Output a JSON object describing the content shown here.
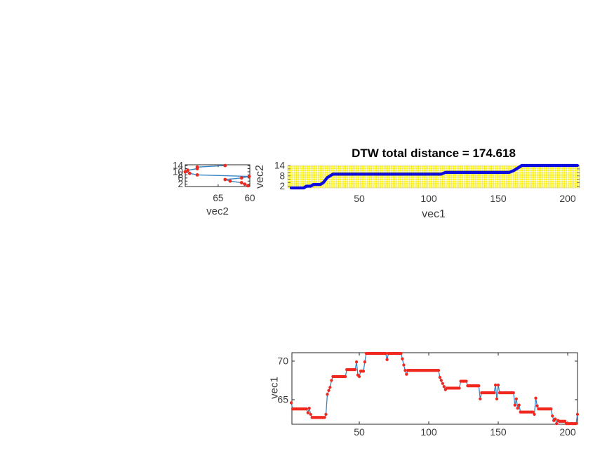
{
  "title": "DTW total distance = 174.618",
  "colors": {
    "marker_red": "#f0281e",
    "series_line_blue": "#3a85c4",
    "warp_path_blue": "#0c0cdf",
    "matrix_dot_yellow": "#f6ec00",
    "matrix_bg": "#fffee8",
    "axis_box": "#262626",
    "tick_text": "#3a3a3a",
    "title_text": "#000000",
    "grid_dash_white": "#ffffff"
  },
  "chart_data": [
    {
      "type": "line",
      "name": "vec2_profile_sideways",
      "xlabel": "vec2",
      "x_ticks": [
        65,
        60
      ],
      "x_reversed": true,
      "xlim": [
        70.2,
        60
      ],
      "y_tick_labels": [
        14,
        10,
        8,
        6,
        2
      ],
      "y_tick_marks": [
        2,
        4,
        6,
        8,
        10,
        12,
        14
      ],
      "ylim": [
        0.5,
        14.5
      ],
      "indices_axis": "y (sample index 1..14, bottom to top)",
      "values": [
        60.3,
        60.8,
        61.3,
        63.1,
        63.9,
        61.3,
        60.1,
        68.3,
        69.5,
        70.2,
        69.8,
        68.3,
        68.3,
        63.9
      ]
    },
    {
      "type": "line",
      "name": "dtw_warping_path",
      "title": "DTW total distance = 174.618",
      "xlabel": "vec1",
      "ylabel": "vec2",
      "x_ticks": [
        50,
        100,
        150,
        200
      ],
      "y_tick_labels": [
        14,
        8,
        2
      ],
      "y_tick_marks": [
        2,
        4,
        6,
        8,
        10,
        12,
        14
      ],
      "xlim": [
        1,
        207
      ],
      "ylim": [
        1,
        14
      ],
      "background": "yellow dotted distance-matrix fill",
      "path": [
        [
          1,
          1
        ],
        [
          10,
          1
        ],
        [
          12,
          2
        ],
        [
          15,
          2
        ],
        [
          17,
          3
        ],
        [
          22,
          3
        ],
        [
          24,
          4
        ],
        [
          25,
          5
        ],
        [
          26,
          6
        ],
        [
          27,
          7
        ],
        [
          29,
          8
        ],
        [
          31,
          9
        ],
        [
          109,
          9
        ],
        [
          112,
          10
        ],
        [
          158,
          10
        ],
        [
          161,
          11
        ],
        [
          163,
          12
        ],
        [
          165,
          13
        ],
        [
          167,
          14
        ],
        [
          207,
          14
        ]
      ]
    },
    {
      "type": "line",
      "name": "vec1_profile",
      "ylabel": "vec1",
      "x_ticks": [
        50,
        100,
        150,
        200
      ],
      "y_ticks": [
        70,
        65
      ],
      "xlim": [
        1,
        207
      ],
      "ylim": [
        61.8,
        71.1
      ],
      "values": [
        64.6,
        63.8,
        63.8,
        63.8,
        63.8,
        63.8,
        63.8,
        63.8,
        63.8,
        63.8,
        63.8,
        63.8,
        63.3,
        63.9,
        63.1,
        62.7,
        62.7,
        62.7,
        62.7,
        62.7,
        62.7,
        62.7,
        62.7,
        62.7,
        62.7,
        63.1,
        65.7,
        66.2,
        66.6,
        67.5,
        68.0,
        68.0,
        68.0,
        68.0,
        68.0,
        68.0,
        68.0,
        68.0,
        68.0,
        68.0,
        68.9,
        68.9,
        68.9,
        68.9,
        68.9,
        68.9,
        68.9,
        69.9,
        68.2,
        68.0,
        68.7,
        68.7,
        68.7,
        69.9,
        71.0,
        71.0,
        71.0,
        71.0,
        71.0,
        71.0,
        71.0,
        71.0,
        71.0,
        71.0,
        71.0,
        71.0,
        71.0,
        71.0,
        71.0,
        70.2,
        71.0,
        71.0,
        71.0,
        71.0,
        71.0,
        71.0,
        71.0,
        71.0,
        71.0,
        71.0,
        70.3,
        69.5,
        68.8,
        68.3,
        68.8,
        68.8,
        68.8,
        68.8,
        68.8,
        68.8,
        68.8,
        68.8,
        68.8,
        68.8,
        68.8,
        68.8,
        68.8,
        68.8,
        68.8,
        68.8,
        68.8,
        68.8,
        68.8,
        68.8,
        68.8,
        68.8,
        68.8,
        67.9,
        67.5,
        67.1,
        66.7,
        66.3,
        66.5,
        66.5,
        66.5,
        66.5,
        66.5,
        66.5,
        66.5,
        66.5,
        66.5,
        66.5,
        67.4,
        67.4,
        67.4,
        67.4,
        67.4,
        66.8,
        66.8,
        66.8,
        66.8,
        66.8,
        66.8,
        66.8,
        66.8,
        66.8,
        65.1,
        65.9,
        65.9,
        65.9,
        65.9,
        65.9,
        65.9,
        65.9,
        65.9,
        65.9,
        65.9,
        66.9,
        65.1,
        66.9,
        65.9,
        65.9,
        65.9,
        65.9,
        65.9,
        65.9,
        65.9,
        65.9,
        65.9,
        65.9,
        65.9,
        64.3,
        65.1,
        63.9,
        64.3,
        63.4,
        63.4,
        63.4,
        63.4,
        63.4,
        63.4,
        63.4,
        63.4,
        63.4,
        63.4,
        63.1,
        65.2,
        64.2,
        63.8,
        63.8,
        63.8,
        63.8,
        63.8,
        63.8,
        63.8,
        63.8,
        63.8,
        63.8,
        62.9,
        62.3,
        62.5,
        61.9,
        62.3,
        62.2,
        62.2,
        62.2,
        62.2,
        62.2,
        61.9,
        61.9,
        61.9,
        61.9,
        61.9,
        61.9,
        61.9,
        61.9,
        63.1
      ]
    }
  ],
  "labels": {
    "dtw_title": "DTW total distance = 174.618",
    "vec2_xlabel": "vec2",
    "warp_ylabel": "vec2",
    "warp_xlabel": "vec1",
    "vec1_ylabel": "vec1"
  }
}
